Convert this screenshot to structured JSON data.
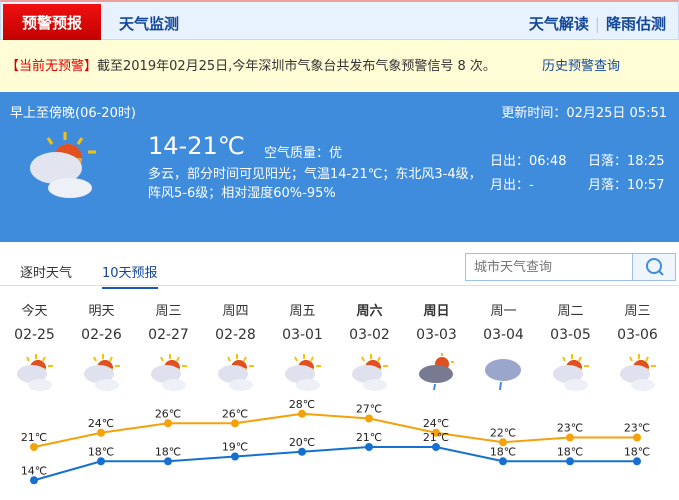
{
  "nav": {
    "active_tab": "预警预报",
    "tab2": "天气监测",
    "right_links": [
      "天气解读",
      "降雨估测"
    ]
  },
  "warning": {
    "status": "【当前无预警】",
    "text": "截至2019年02月25日,今年深圳市气象台共发布气象预警信号 8 次。",
    "history_link": "历史预警查询"
  },
  "current": {
    "period": "早上至傍晚(06-20时)",
    "updated": "更新时间：02月25日 05:51",
    "temp": "14-21℃",
    "air_quality": "空气质量：优",
    "description": "多云，部分时间可见阳光；气温14-21℃；东北风3-4级，阵风5-6级；相对湿度60%-95%",
    "sunrise": "日出：06:48",
    "sunset": "日落：18:25",
    "moonrise": "月出：-",
    "moonset": "月落：10:57",
    "icon": "partly-cloudy-icon"
  },
  "tabs": {
    "hourly": "逐时天气",
    "ten_day": "10天预报"
  },
  "search": {
    "placeholder": "城市天气查询"
  },
  "forecast": [
    {
      "day": "今天",
      "date": "02-25",
      "icon": "partly-cloudy",
      "high": "21℃",
      "low": "14℃"
    },
    {
      "day": "明天",
      "date": "02-26",
      "icon": "partly-cloudy",
      "high": "24℃",
      "low": "18℃"
    },
    {
      "day": "周三",
      "date": "02-27",
      "icon": "partly-cloudy",
      "high": "26℃",
      "low": "18℃"
    },
    {
      "day": "周四",
      "date": "02-28",
      "icon": "partly-cloudy",
      "high": "26℃",
      "low": "19℃"
    },
    {
      "day": "周五",
      "date": "03-01",
      "icon": "partly-cloudy",
      "high": "28℃",
      "low": "20℃"
    },
    {
      "day": "周六",
      "date": "03-02",
      "icon": "partly-cloudy",
      "high": "27℃",
      "low": "21℃",
      "bold": true
    },
    {
      "day": "周日",
      "date": "03-03",
      "icon": "sun-shower",
      "high": "24℃",
      "low": "21℃",
      "bold": true
    },
    {
      "day": "周一",
      "date": "03-04",
      "icon": "light-rain",
      "high": "22℃",
      "low": "18℃"
    },
    {
      "day": "周二",
      "date": "03-05",
      "icon": "partly-cloudy",
      "high": "23℃",
      "low": "18℃"
    },
    {
      "day": "周三",
      "date": "03-06",
      "icon": "partly-cloudy",
      "high": "23℃",
      "low": "18℃"
    }
  ],
  "chart_data": {
    "type": "line",
    "categories": [
      "02-25",
      "02-26",
      "02-27",
      "02-28",
      "03-01",
      "03-02",
      "03-03",
      "03-04",
      "03-05",
      "03-06"
    ],
    "series": [
      {
        "values": [
          21,
          24,
          26,
          26,
          28,
          27,
          24,
          22,
          23,
          23
        ],
        "color": "#f5a20a"
      },
      {
        "values": [
          14,
          18,
          18,
          19,
          20,
          21,
          21,
          18,
          18,
          18
        ],
        "color": "#1670d0"
      }
    ]
  },
  "colors": {
    "accent": "#3f8cdc",
    "alert": "#e00000",
    "link": "#12479a"
  }
}
